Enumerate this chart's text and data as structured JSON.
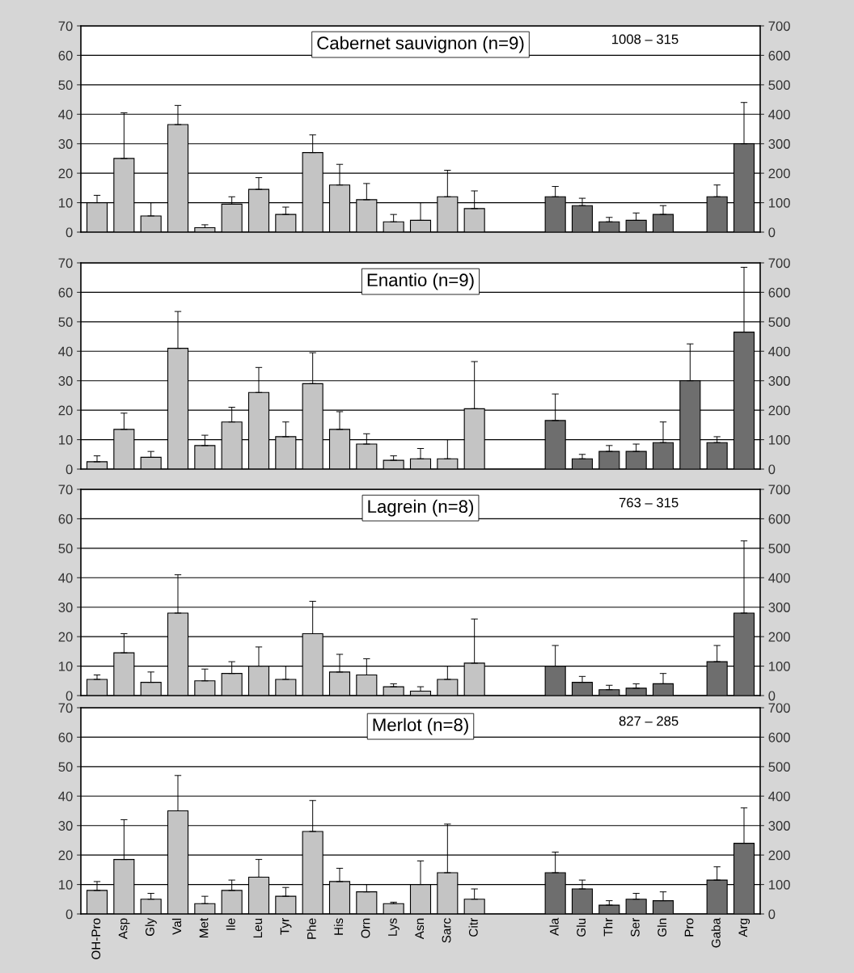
{
  "chart_data": [
    {
      "type": "bar",
      "title": "Cabernet sauvignon (n=9)",
      "categories": [
        null,
        null,
        null,
        null,
        null,
        null,
        null,
        null,
        null,
        null,
        null,
        null,
        null,
        null,
        null,
        null,
        null,
        null,
        null,
        null,
        null,
        null,
        null,
        null,
        null
      ],
      "ylim": [
        0,
        70
      ],
      "yticks": [
        0,
        10,
        20,
        30,
        40,
        50,
        60,
        70
      ],
      "y2lim": [
        0,
        700
      ],
      "y2ticks": [
        0,
        100,
        200,
        300,
        400,
        500,
        600,
        700
      ],
      "grid": "y",
      "tick_labels": "y",
      "series": [
        {
          "color": "#c4c4c4",
          "values": [
            10,
            25,
            5.5,
            36.5,
            1.5,
            9.5,
            14.5,
            6,
            27,
            16,
            11,
            3.5,
            4,
            12,
            8,
            null,
            null,
            null,
            null,
            null,
            null,
            null,
            null,
            null,
            null
          ],
          "errors": [
            [
              10,
              12.5
            ],
            [
              25,
              40.5
            ],
            [
              5.5,
              10
            ],
            [
              36.5,
              43
            ],
            [
              1.5,
              2.5
            ],
            [
              9.5,
              12
            ],
            [
              14.5,
              18.5
            ],
            [
              6,
              8.5
            ],
            [
              27,
              33
            ],
            [
              16,
              23
            ],
            [
              11,
              16.5
            ],
            [
              3.5,
              6
            ],
            [
              4,
              10
            ],
            [
              12,
              21
            ],
            [
              8,
              14
            ],
            null,
            null,
            null,
            null,
            null,
            null,
            null,
            null,
            null,
            null
          ]
        },
        {
          "color": "#6e6e6e",
          "axis": "y2",
          "values": [
            null,
            null,
            null,
            null,
            null,
            null,
            null,
            null,
            null,
            null,
            null,
            null,
            null,
            null,
            null,
            null,
            null,
            120,
            90,
            35,
            40,
            60,
            null,
            120,
            300
          ],
          "errors": [
            null,
            null,
            null,
            null,
            null,
            null,
            null,
            null,
            null,
            null,
            null,
            null,
            null,
            null,
            null,
            null,
            null,
            [
              120,
              155
            ],
            [
              90,
              115
            ],
            [
              35,
              50
            ],
            [
              40,
              65
            ],
            [
              60,
              90
            ],
            null,
            [
              120,
              160
            ],
            [
              300,
              440
            ]
          ]
        }
      ],
      "annotations": [
        "1008 – 315"
      ]
    },
    {
      "type": "bar",
      "title": "Enantio (n=9)",
      "categories": [
        null,
        null,
        null,
        null,
        null,
        null,
        null,
        null,
        null,
        null,
        null,
        null,
        null,
        null,
        null,
        null,
        null,
        null,
        null,
        null,
        null,
        null,
        null,
        null,
        null
      ],
      "ylim": [
        0,
        70
      ],
      "yticks": [
        0,
        10,
        20,
        30,
        40,
        50,
        60,
        70
      ],
      "y2lim": [
        0,
        700
      ],
      "y2ticks": [
        0,
        100,
        200,
        300,
        400,
        500,
        600,
        700
      ],
      "grid": "y",
      "tick_labels": "y",
      "series": [
        {
          "color": "#c4c4c4",
          "values": [
            2.5,
            13.5,
            4,
            41,
            8,
            16,
            26,
            11,
            29,
            13.5,
            8.5,
            3,
            3.5,
            3.5,
            20.5,
            null,
            null,
            null,
            null,
            null,
            null,
            null,
            null,
            null,
            null
          ],
          "errors": [
            [
              2.5,
              4.5
            ],
            [
              13.5,
              19
            ],
            [
              4,
              6
            ],
            [
              41,
              53.5
            ],
            [
              8,
              11.5
            ],
            [
              16,
              21
            ],
            [
              26,
              34.5
            ],
            [
              11,
              16
            ],
            [
              29,
              39.5
            ],
            [
              13.5,
              19.5
            ],
            [
              8.5,
              12
            ],
            [
              3,
              4.5
            ],
            [
              3.5,
              7
            ],
            [
              3.5,
              10
            ],
            [
              20.5,
              36.5
            ],
            null,
            null,
            null,
            null,
            null,
            null,
            null,
            null,
            null,
            null
          ]
        },
        {
          "color": "#6e6e6e",
          "axis": "y2",
          "values": [
            null,
            null,
            null,
            null,
            null,
            null,
            null,
            null,
            null,
            null,
            null,
            null,
            null,
            null,
            null,
            null,
            null,
            165,
            35,
            60,
            60,
            90,
            300,
            90,
            465
          ],
          "errors": [
            null,
            null,
            null,
            null,
            null,
            null,
            null,
            null,
            null,
            null,
            null,
            null,
            null,
            null,
            null,
            null,
            null,
            [
              165,
              255
            ],
            [
              35,
              50
            ],
            [
              60,
              80
            ],
            [
              60,
              85
            ],
            [
              90,
              160
            ],
            [
              300,
              425
            ],
            [
              90,
              110
            ],
            [
              465,
              685
            ]
          ]
        }
      ]
    },
    {
      "type": "bar",
      "title": "Lagrein (n=8)",
      "categories": [
        null,
        null,
        null,
        null,
        null,
        null,
        null,
        null,
        null,
        null,
        null,
        null,
        null,
        null,
        null,
        null,
        null,
        null,
        null,
        null,
        null,
        null,
        null,
        null,
        null
      ],
      "ylim": [
        0,
        70
      ],
      "yticks": [
        0,
        10,
        20,
        30,
        40,
        50,
        60,
        70
      ],
      "y2lim": [
        0,
        700
      ],
      "y2ticks": [
        0,
        100,
        200,
        300,
        400,
        500,
        600,
        700
      ],
      "grid": "y",
      "tick_labels": "y",
      "series": [
        {
          "color": "#c4c4c4",
          "values": [
            5.5,
            14.5,
            4.5,
            28,
            5,
            7.5,
            10,
            5.5,
            21,
            8,
            7,
            3,
            1.5,
            5.5,
            11,
            null,
            null,
            null,
            null,
            null,
            null,
            null,
            null,
            null,
            null
          ],
          "errors": [
            [
              5.5,
              7
            ],
            [
              14.5,
              21
            ],
            [
              4.5,
              8
            ],
            [
              28,
              41
            ],
            [
              5,
              9
            ],
            [
              7.5,
              11.5
            ],
            [
              10,
              16.5
            ],
            [
              5.5,
              10
            ],
            [
              21,
              32
            ],
            [
              8,
              14
            ],
            [
              7,
              12.5
            ],
            [
              3,
              4
            ],
            [
              1.5,
              3
            ],
            [
              5.5,
              10
            ],
            [
              11,
              26
            ],
            null,
            null,
            null,
            null,
            null,
            null,
            null,
            null,
            null,
            null
          ]
        },
        {
          "color": "#6e6e6e",
          "axis": "y2",
          "values": [
            null,
            null,
            null,
            null,
            null,
            null,
            null,
            null,
            null,
            null,
            null,
            null,
            null,
            null,
            null,
            null,
            null,
            100,
            45,
            20,
            25,
            40,
            null,
            115,
            280
          ],
          "errors": [
            null,
            null,
            null,
            null,
            null,
            null,
            null,
            null,
            null,
            null,
            null,
            null,
            null,
            null,
            null,
            null,
            null,
            [
              100,
              170
            ],
            [
              45,
              65
            ],
            [
              20,
              35
            ],
            [
              25,
              40
            ],
            [
              40,
              75
            ],
            null,
            [
              115,
              170
            ],
            [
              280,
              525
            ]
          ]
        }
      ],
      "annotations": [
        "763 – 315"
      ]
    },
    {
      "type": "bar",
      "title": "Merlot (n=8)",
      "categories": [
        "OH-Pro",
        "Asp",
        "Gly",
        "Val",
        "Met",
        "Ile",
        "Leu",
        "Tyr",
        "Phe",
        "His",
        "Orn",
        "Lys",
        "Asn",
        "Sarc",
        "Citr",
        null,
        null,
        "Ala",
        "Glu",
        "Thr",
        "Ser",
        "Gln",
        "Pro",
        "Gaba",
        "Arg"
      ],
      "ylim": [
        0,
        70
      ],
      "yticks": [
        0,
        10,
        20,
        30,
        40,
        50,
        60,
        70
      ],
      "y2lim": [
        0,
        700
      ],
      "y2ticks": [
        0,
        100,
        200,
        300,
        400,
        500,
        600,
        700
      ],
      "grid": "y",
      "series": [
        {
          "color": "#c4c4c4",
          "values": [
            8,
            18.5,
            5,
            35,
            3.5,
            8,
            12.5,
            6,
            28,
            11,
            7.5,
            3.5,
            10,
            14,
            5,
            null,
            null,
            null,
            null,
            null,
            null,
            null,
            null,
            null,
            null
          ],
          "errors": [
            [
              8,
              11
            ],
            [
              18.5,
              32
            ],
            [
              5,
              7
            ],
            [
              35,
              47
            ],
            [
              3.5,
              6
            ],
            [
              8,
              11.5
            ],
            [
              12.5,
              18.5
            ],
            [
              6,
              9
            ],
            [
              28,
              38.5
            ],
            [
              11,
              15.5
            ],
            [
              7.5,
              10
            ],
            [
              3.5,
              4
            ],
            [
              10,
              18
            ],
            [
              14,
              30.5
            ],
            [
              5,
              8.5
            ],
            null,
            null,
            null,
            null,
            null,
            null,
            null,
            null,
            null,
            null
          ]
        },
        {
          "color": "#6e6e6e",
          "axis": "y2",
          "values": [
            null,
            null,
            null,
            null,
            null,
            null,
            null,
            null,
            null,
            null,
            null,
            null,
            null,
            null,
            null,
            null,
            null,
            140,
            85,
            30,
            50,
            45,
            null,
            115,
            240
          ],
          "errors": [
            null,
            null,
            null,
            null,
            null,
            null,
            null,
            null,
            null,
            null,
            null,
            null,
            null,
            null,
            null,
            null,
            null,
            [
              140,
              210
            ],
            [
              85,
              115
            ],
            [
              30,
              45
            ],
            [
              50,
              70
            ],
            [
              45,
              75
            ],
            null,
            [
              115,
              160
            ],
            [
              240,
              360
            ]
          ]
        }
      ],
      "annotations": [
        "827 – 285"
      ]
    }
  ]
}
